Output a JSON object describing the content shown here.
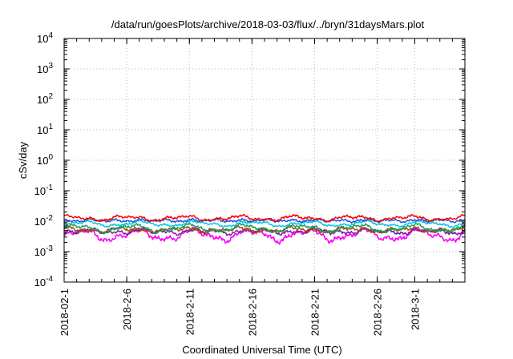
{
  "chart_data": {
    "type": "line",
    "title": "/data/run/goesPlots/archive/2018-03-03/flux/../bryn/31daysMars.plot",
    "xlabel": "Coordinated Universal Time (UTC)",
    "ylabel": "cSv/day",
    "y_scale": "log",
    "ylim": [
      0.0001,
      10000
    ],
    "y_ticks": [
      {
        "base": "10",
        "exp": "4"
      },
      {
        "base": "10",
        "exp": "3"
      },
      {
        "base": "10",
        "exp": "2"
      },
      {
        "base": "10",
        "exp": "1"
      },
      {
        "base": "10",
        "exp": "0"
      },
      {
        "base": "10",
        "exp": "-1"
      },
      {
        "base": "10",
        "exp": "-2"
      },
      {
        "base": "10",
        "exp": "-3"
      },
      {
        "base": "10",
        "exp": "-4"
      }
    ],
    "xlim": [
      "2018-02-01",
      "2018-03-05"
    ],
    "x_ticks": [
      "2018-02-1",
      "2018-2-6",
      "2018-2-11",
      "2018-2-16",
      "2018-2-21",
      "2018-2-26",
      "2018-3-1"
    ],
    "grid": true,
    "series": [
      {
        "color": "#ff0000",
        "level": 0.0125,
        "spread": 0.25
      },
      {
        "color": "#1f55e0",
        "level": 0.0105,
        "spread": 0.22
      },
      {
        "color": "#00c8e0",
        "level": 0.0082,
        "spread": 0.22
      },
      {
        "color": "#1a9e60",
        "level": 0.0058,
        "spread": 0.28
      },
      {
        "color": "#a05000",
        "level": 0.0052,
        "spread": 0.3
      },
      {
        "color": "#7a1fa0",
        "level": 0.0046,
        "spread": 0.32
      },
      {
        "color": "#ff00ff",
        "level": 0.0035,
        "spread": 0.45
      }
    ]
  }
}
